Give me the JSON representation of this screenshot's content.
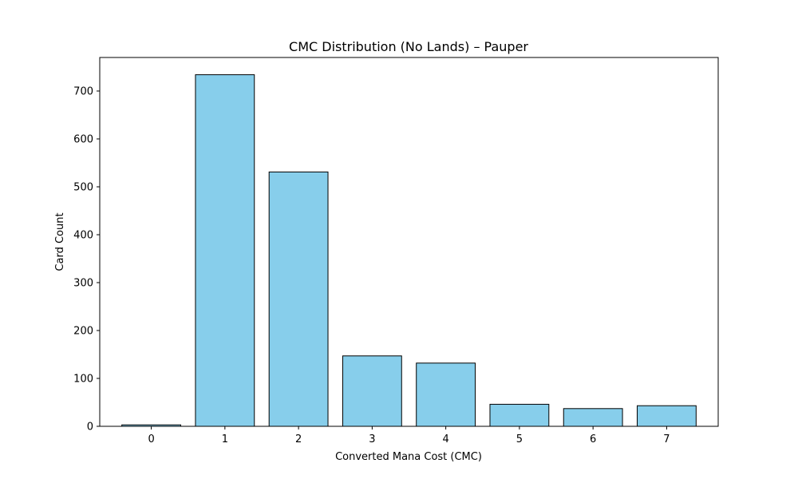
{
  "chart_data": {
    "type": "bar",
    "title": "CMC Distribution (No Lands) – Pauper",
    "xlabel": "Converted Mana Cost (CMC)",
    "ylabel": "Card Count",
    "categories": [
      "0",
      "1",
      "2",
      "3",
      "4",
      "5",
      "6",
      "7"
    ],
    "values": [
      3,
      734,
      531,
      147,
      132,
      46,
      37,
      43
    ],
    "ylim": [
      0,
      770
    ],
    "yticks": [
      0,
      100,
      200,
      300,
      400,
      500,
      600,
      700
    ],
    "grid": false,
    "legend": "none",
    "bar_color": "#87ceeb",
    "bar_edge_color": "#000000"
  }
}
